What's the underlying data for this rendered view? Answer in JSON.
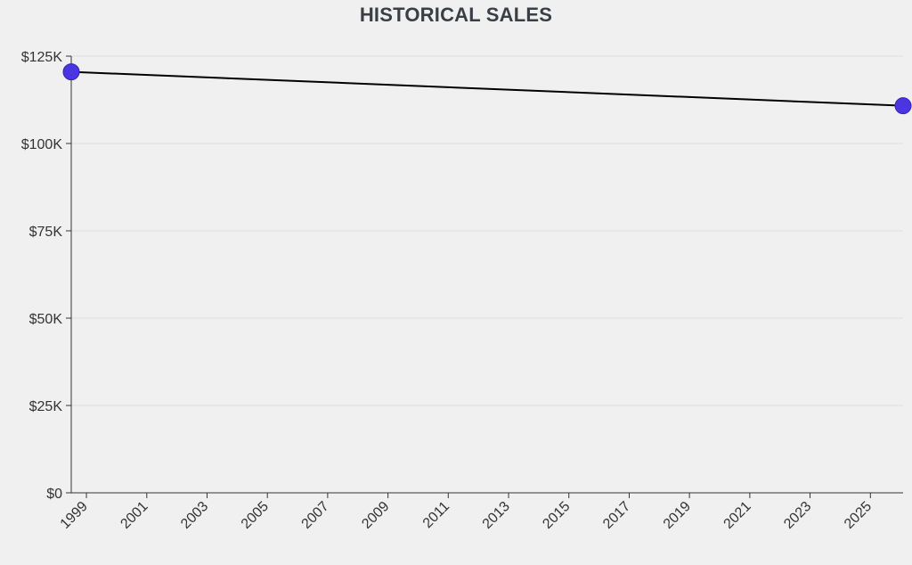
{
  "chart_data": {
    "type": "line",
    "title": "HISTORICAL SALES",
    "xlabel": "",
    "ylabel": "",
    "x_ticks": [
      "1999",
      "2001",
      "2003",
      "2005",
      "2007",
      "2009",
      "2011",
      "2013",
      "2015",
      "2017",
      "2019",
      "2021",
      "2023",
      "2025"
    ],
    "y_ticks": [
      "$0",
      "$25K",
      "$50K",
      "$75K",
      "$100K",
      "$125K"
    ],
    "xlim": [
      "1998-07-01",
      "2026-02-01"
    ],
    "ylim": [
      0,
      125000
    ],
    "grid": true,
    "series": [
      {
        "points": [
          {
            "x": "1998-07-01",
            "y": 120500
          },
          {
            "x": "2026-02-01",
            "y": 110800
          }
        ]
      }
    ],
    "colors": {
      "line": "#000000",
      "marker": "#4a35e0",
      "grid": "#dedede",
      "axis": "#333333"
    }
  }
}
